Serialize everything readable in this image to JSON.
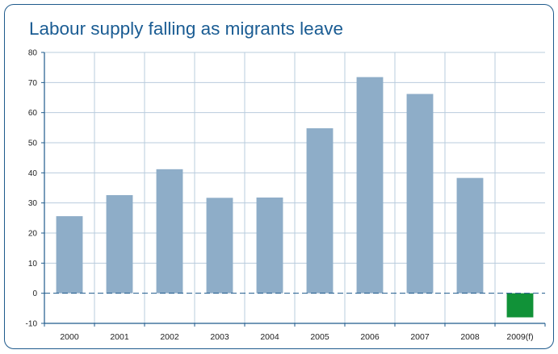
{
  "chart_data": {
    "type": "bar",
    "title": "Labour supply falling as migrants leave",
    "xlabel": "",
    "ylabel": "",
    "categories": [
      "2000",
      "2001",
      "2002",
      "2003",
      "2004",
      "2005",
      "2006",
      "2007",
      "2008",
      "2009(f)"
    ],
    "values": [
      25.6,
      32.6,
      41.2,
      31.7,
      31.8,
      54.8,
      71.8,
      66.2,
      38.3,
      -8.0
    ],
    "ylim": [
      -10,
      80
    ],
    "yticks": [
      -10,
      0,
      10,
      20,
      30,
      40,
      50,
      60,
      70,
      80
    ],
    "grid": true,
    "zero_line": "dashed",
    "colors": {
      "bar": "#8eadc8",
      "forecast_bar": "#119238",
      "grid": "#b9ccdd",
      "axis": "#1e5a8c",
      "frame": "#1e5a8c",
      "title": "#1a5c93"
    }
  }
}
